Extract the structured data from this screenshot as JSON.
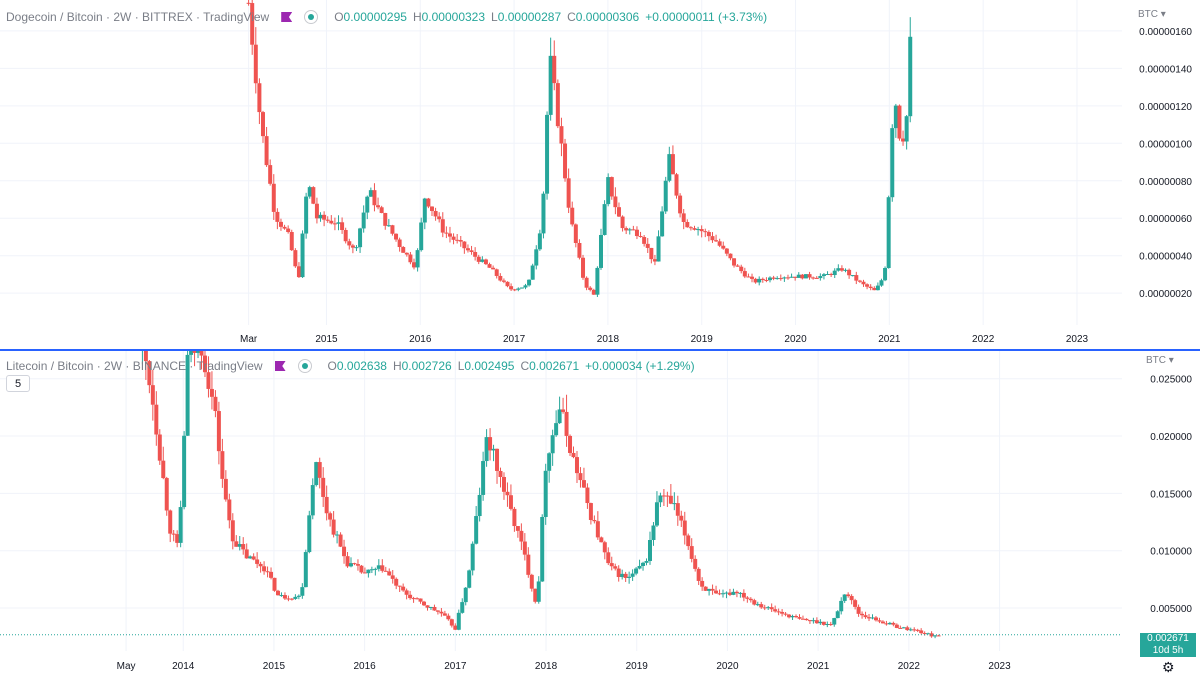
{
  "chart_data": [
    {
      "type": "candlestick",
      "pane": "top",
      "title": "Dogecoin / Bitcoin · 2W · BITTREX · TradingView",
      "ohlc": {
        "o": "0.00000295",
        "h": "0.00000323",
        "l": "0.00000287",
        "c": "0.00000306",
        "change": "+0.00000011 (+3.73%)"
      },
      "price_unit": "BTC",
      "y_ticks": [
        "0.00000020",
        "0.00000040",
        "0.00000060",
        "0.00000080",
        "0.00000100",
        "0.00000120",
        "0.00000140",
        "0.00000160"
      ],
      "y_tick_values": [
        2e-07,
        4e-07,
        6e-07,
        8e-07,
        1e-06,
        1.2e-06,
        1.4e-06,
        1.6e-06
      ],
      "ylim": [
        3e-08,
        1.765e-06
      ],
      "x_ticks": [
        {
          "label": "Mar",
          "x": 2014.17
        },
        {
          "label": "2015",
          "x": 2015
        },
        {
          "label": "2016",
          "x": 2016
        },
        {
          "label": "2017",
          "x": 2017
        },
        {
          "label": "2018",
          "x": 2018
        },
        {
          "label": "2019",
          "x": 2019
        },
        {
          "label": "2020",
          "x": 2020
        },
        {
          "label": "2021",
          "x": 2021
        },
        {
          "label": "2022",
          "x": 2022
        },
        {
          "label": "2023",
          "x": 2023
        }
      ],
      "xlim": [
        2011.52,
        2023.48
      ],
      "series_approx": [
        [
          2014.17,
          1.75
        ],
        [
          2014.3,
          1.1
        ],
        [
          2014.45,
          0.62
        ],
        [
          2014.6,
          0.5
        ],
        [
          2014.7,
          0.26
        ],
        [
          2014.8,
          0.8
        ],
        [
          2014.9,
          0.6
        ],
        [
          2015.1,
          0.58
        ],
        [
          2015.3,
          0.42
        ],
        [
          2015.45,
          0.75
        ],
        [
          2015.6,
          0.6
        ],
        [
          2015.8,
          0.44
        ],
        [
          2015.95,
          0.34
        ],
        [
          2016.05,
          0.72
        ],
        [
          2016.25,
          0.53
        ],
        [
          2016.5,
          0.43
        ],
        [
          2016.75,
          0.33
        ],
        [
          2016.95,
          0.22
        ],
        [
          2017.15,
          0.24
        ],
        [
          2017.3,
          0.6
        ],
        [
          2017.38,
          1.46
        ],
        [
          2017.5,
          1.0
        ],
        [
          2017.6,
          0.6
        ],
        [
          2017.75,
          0.25
        ],
        [
          2017.85,
          0.19
        ],
        [
          2018.0,
          0.8
        ],
        [
          2018.15,
          0.55
        ],
        [
          2018.35,
          0.52
        ],
        [
          2018.5,
          0.35
        ],
        [
          2018.65,
          0.92
        ],
        [
          2018.8,
          0.58
        ],
        [
          2018.95,
          0.55
        ],
        [
          2019.15,
          0.48
        ],
        [
          2019.35,
          0.35
        ],
        [
          2019.55,
          0.26
        ],
        [
          2019.8,
          0.29
        ],
        [
          2020.1,
          0.29
        ],
        [
          2020.3,
          0.29
        ],
        [
          2020.5,
          0.33
        ],
        [
          2020.7,
          0.25
        ],
        [
          2020.85,
          0.21
        ],
        [
          2020.95,
          0.3
        ],
        [
          2021.05,
          1.3
        ],
        [
          2021.12,
          1.0
        ],
        [
          2021.18,
          1.1
        ],
        [
          2021.25,
          1.8
        ]
      ]
    },
    {
      "type": "candlestick",
      "pane": "bottom",
      "title": "Litecoin / Bitcoin · 2W · BINANCE · TradingView",
      "ohlc": {
        "o": "0.002638",
        "h": "0.002726",
        "l": "0.002495",
        "c": "0.002671",
        "change": "+0.000034 (+1.29%)"
      },
      "price_unit": "BTC",
      "interval_badge": "5",
      "last_price_label": "0.002671",
      "countdown_label": "10d 5h",
      "y_ticks": [
        "0.005000",
        "0.010000",
        "0.015000",
        "0.020000",
        "0.025000"
      ],
      "y_tick_values": [
        0.005,
        0.01,
        0.015,
        0.02,
        0.025
      ],
      "ylim": [
        0.00125,
        0.02742
      ],
      "x_ticks": [
        {
          "label": "May",
          "x": 2013.37
        },
        {
          "label": "2014",
          "x": 2014
        },
        {
          "label": "2015",
          "x": 2015
        },
        {
          "label": "2016",
          "x": 2016
        },
        {
          "label": "2017",
          "x": 2017
        },
        {
          "label": "2018",
          "x": 2018
        },
        {
          "label": "2019",
          "x": 2019
        },
        {
          "label": "2020",
          "x": 2020
        },
        {
          "label": "2021",
          "x": 2021
        },
        {
          "label": "2022",
          "x": 2022
        },
        {
          "label": "2023",
          "x": 2023
        }
      ],
      "xlim": [
        2011.98,
        2024.35
      ],
      "series_approx": [
        [
          2013.55,
          0.028
        ],
        [
          2013.65,
          0.024
        ],
        [
          2013.75,
          0.018
        ],
        [
          2013.85,
          0.012
        ],
        [
          2013.95,
          0.01
        ],
        [
          2014.05,
          0.027
        ],
        [
          2014.2,
          0.028
        ],
        [
          2014.35,
          0.022
        ],
        [
          2014.45,
          0.015
        ],
        [
          2014.55,
          0.011
        ],
        [
          2014.7,
          0.0095
        ],
        [
          2014.9,
          0.0085
        ],
        [
          2015.05,
          0.006
        ],
        [
          2015.3,
          0.006
        ],
        [
          2015.45,
          0.018
        ],
        [
          2015.6,
          0.013
        ],
        [
          2015.8,
          0.009
        ],
        [
          2016.0,
          0.008
        ],
        [
          2016.2,
          0.0085
        ],
        [
          2016.4,
          0.0065
        ],
        [
          2016.6,
          0.0055
        ],
        [
          2016.85,
          0.0045
        ],
        [
          2017.0,
          0.0032
        ],
        [
          2017.15,
          0.008
        ],
        [
          2017.35,
          0.02
        ],
        [
          2017.55,
          0.015
        ],
        [
          2017.75,
          0.01
        ],
        [
          2017.9,
          0.005
        ],
        [
          2018.0,
          0.018
        ],
        [
          2018.15,
          0.0225
        ],
        [
          2018.3,
          0.018
        ],
        [
          2018.5,
          0.013
        ],
        [
          2018.7,
          0.0085
        ],
        [
          2018.9,
          0.0075
        ],
        [
          2019.1,
          0.009
        ],
        [
          2019.25,
          0.015
        ],
        [
          2019.4,
          0.014
        ],
        [
          2019.55,
          0.011
        ],
        [
          2019.7,
          0.007
        ],
        [
          2019.9,
          0.006
        ],
        [
          2020.1,
          0.0065
        ],
        [
          2020.3,
          0.0055
        ],
        [
          2020.5,
          0.0048
        ],
        [
          2020.8,
          0.004
        ],
        [
          2021.0,
          0.0038
        ],
        [
          2021.15,
          0.0035
        ],
        [
          2021.3,
          0.0065
        ],
        [
          2021.45,
          0.0045
        ],
        [
          2021.7,
          0.0038
        ],
        [
          2021.9,
          0.0033
        ],
        [
          2022.1,
          0.003
        ],
        [
          2022.25,
          0.0026
        ],
        [
          2022.35,
          0.00267
        ]
      ]
    }
  ],
  "colors": {
    "up": "#26a69a",
    "down": "#ef5350",
    "grid": "#f0f3fa",
    "text": "#131722",
    "muted": "#7a7e87",
    "divider": "#2962ff",
    "flag": "#9c27b0"
  }
}
